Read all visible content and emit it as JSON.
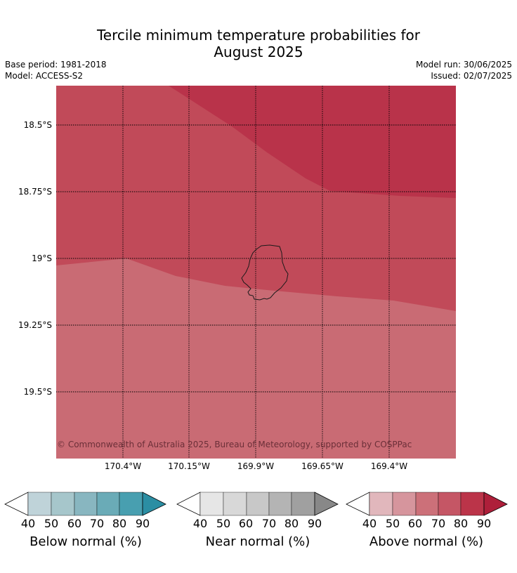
{
  "title_line1": "Tercile minimum temperature probabilities for",
  "title_line2": "August 2025",
  "meta": {
    "base_period": "Base period: 1981-2018",
    "model": "Model: ACCESS-S2",
    "model_run": "Model run: 30/06/2025",
    "issued": "Issued: 02/07/2025"
  },
  "map": {
    "lat_labels": [
      "18.5°S",
      "18.75°S",
      "19°S",
      "19.25°S",
      "19.5°S"
    ],
    "lon_labels": [
      "170.4°W",
      "170.15°W",
      "169.9°W",
      "169.65°W",
      "169.4°W"
    ],
    "copyright": "© Commonwealth of Australia 2025, Bureau of Meteorology, supported by COSPPac",
    "zones": [
      {
        "category": "above normal",
        "probability_band": "80-90",
        "color": "#b9334a"
      },
      {
        "category": "above normal",
        "probability_band": "70-80",
        "color": "#c14a59"
      },
      {
        "category": "above normal",
        "probability_band": "60-70",
        "color": "#c96b74"
      }
    ]
  },
  "legends": [
    {
      "name": "Below normal (%)",
      "ticks": [
        "40",
        "50",
        "60",
        "70",
        "80",
        "90"
      ],
      "colors": [
        "#bfd3d9",
        "#a6c6cb",
        "#88b6c0",
        "#6aabb7",
        "#489fb0",
        "#2b8ea3"
      ]
    },
    {
      "name": "Near normal (%)",
      "ticks": [
        "40",
        "50",
        "60",
        "70",
        "80",
        "90"
      ],
      "colors": [
        "#e6e6e6",
        "#d8d8d8",
        "#c8c8c8",
        "#b4b4b4",
        "#a0a0a0",
        "#888888"
      ]
    },
    {
      "name": "Above normal (%)",
      "ticks": [
        "40",
        "50",
        "60",
        "70",
        "80",
        "90"
      ],
      "colors": [
        "#e1b7bc",
        "#d6959d",
        "#cc7079",
        "#c55665",
        "#bb3449",
        "#ae1f3a"
      ]
    }
  ]
}
